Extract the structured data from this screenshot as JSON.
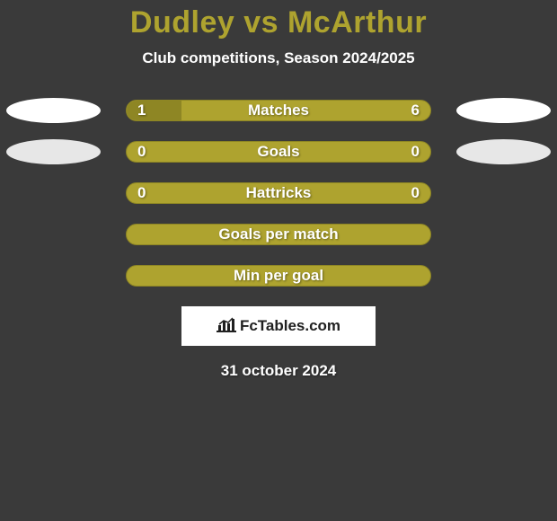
{
  "title": "Dudley vs McArthur",
  "subtitle": "Club competitions, Season 2024/2025",
  "colors": {
    "background": "#3a3a3a",
    "accent": "#aea32f",
    "accent_dark": "#8e8624",
    "ellipse_white": "#ffffff",
    "ellipse_gray": "#e7e7e7",
    "text": "#ffffff",
    "logo_bg": "#ffffff",
    "logo_text": "#202020"
  },
  "stats": [
    {
      "label": "Matches",
      "left_value": "1",
      "right_value": "6",
      "fill_percent": 18,
      "show_left_ellipse": true,
      "show_right_ellipse": true,
      "ellipse_color": "white"
    },
    {
      "label": "Goals",
      "left_value": "0",
      "right_value": "0",
      "fill_percent": 0,
      "show_left_ellipse": true,
      "show_right_ellipse": true,
      "ellipse_color": "gray"
    },
    {
      "label": "Hattricks",
      "left_value": "0",
      "right_value": "0",
      "fill_percent": 0,
      "show_left_ellipse": false,
      "show_right_ellipse": false
    },
    {
      "label": "Goals per match",
      "left_value": "",
      "right_value": "",
      "fill_percent": 0,
      "show_left_ellipse": false,
      "show_right_ellipse": false
    },
    {
      "label": "Min per goal",
      "left_value": "",
      "right_value": "",
      "fill_percent": 0,
      "show_left_ellipse": false,
      "show_right_ellipse": false
    }
  ],
  "logo_text": "FcTables.com",
  "date": "31 october 2024"
}
